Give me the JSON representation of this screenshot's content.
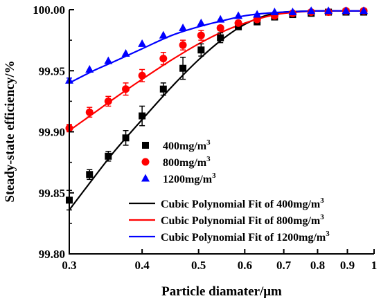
{
  "chart_data": {
    "type": "scatter",
    "xlabel": "Particle diamater/μm",
    "ylabel": "Steady-state efficiency/%",
    "xscale": "log",
    "xlim": [
      0.3,
      1.0
    ],
    "ylim": [
      99.8,
      100.0
    ],
    "xticks": [
      "0.3",
      "0.4",
      "0.5",
      "0.6",
      "0.7",
      "0.8",
      "0.9",
      "1"
    ],
    "yticks": [
      "99.80",
      "99.85",
      "99.90",
      "99.95",
      "100.00"
    ],
    "legend_position": "lower-right",
    "grid": false,
    "x": [
      0.3,
      0.325,
      0.35,
      0.375,
      0.4,
      0.435,
      0.47,
      0.505,
      0.545,
      0.585,
      0.63,
      0.675,
      0.725,
      0.78,
      0.835,
      0.895,
      0.96
    ],
    "series": [
      {
        "name": "400mg/m3",
        "name_parts": [
          "400mg/m",
          "3"
        ],
        "color": "#000000",
        "marker": "square",
        "values": [
          99.844,
          99.865,
          99.88,
          99.895,
          99.913,
          99.935,
          99.952,
          99.967,
          99.977,
          99.986,
          99.99,
          99.994,
          99.996,
          99.997,
          99.998,
          99.998,
          99.998
        ],
        "errors": [
          0.008,
          0.004,
          0.004,
          0.006,
          0.008,
          0.005,
          0.009,
          0.005,
          0.004,
          0.002,
          0.002,
          0.001,
          0.001,
          0.001,
          0.001,
          0.001,
          0.001
        ]
      },
      {
        "name": "800mg/m3",
        "name_parts": [
          "800mg/m",
          "3"
        ],
        "color": "#ff0000",
        "marker": "circle",
        "values": [
          99.903,
          99.916,
          99.925,
          99.935,
          99.946,
          99.96,
          99.971,
          99.979,
          99.985,
          99.989,
          99.992,
          99.995,
          99.997,
          99.998,
          99.998,
          99.999,
          99.999
        ],
        "errors": [
          0.003,
          0.004,
          0.004,
          0.005,
          0.005,
          0.005,
          0.004,
          0.004,
          0.002,
          0.002,
          0.001,
          0.001,
          0.001,
          0.001,
          0.001,
          0.001,
          0.001
        ]
      },
      {
        "name": "1200mg/m3",
        "name_parts": [
          "1200mg/m",
          "3"
        ],
        "color": "#0000ff",
        "marker": "triangle",
        "values": [
          99.942,
          99.951,
          99.958,
          99.964,
          99.972,
          99.979,
          99.985,
          99.989,
          99.992,
          99.995,
          99.996,
          99.998,
          99.998,
          99.999,
          99.999,
          99.999,
          99.999
        ],
        "errors": [
          0.002,
          0.001,
          0.001,
          0.001,
          0.001,
          0.001,
          0.001,
          0.001,
          0.001,
          0.001,
          0.001,
          0.001,
          0.001,
          0.001,
          0.001,
          0.001,
          0.001
        ]
      }
    ],
    "fits": [
      {
        "name": "Cubic Polynomial Fit of 400mg/m3",
        "name_parts": [
          "Cubic Polynomial Fit of 400mg/m",
          "3"
        ],
        "color": "#000000",
        "x": [
          0.3,
          0.33,
          0.36,
          0.4,
          0.45,
          0.5,
          0.55,
          0.6,
          0.65,
          0.7,
          0.8,
          0.9,
          0.96
        ],
        "y": [
          99.836,
          99.862,
          99.885,
          99.91,
          99.937,
          99.959,
          99.976,
          99.988,
          99.995,
          99.998,
          99.999,
          99.999,
          99.999
        ]
      },
      {
        "name": "Cubic Polynomial Fit of 800mg/m3",
        "name_parts": [
          "Cubic Polynomial Fit of 800mg/m",
          "3"
        ],
        "color": "#ff0000",
        "x": [
          0.3,
          0.33,
          0.36,
          0.4,
          0.45,
          0.5,
          0.55,
          0.6,
          0.65,
          0.7,
          0.8,
          0.9,
          0.96
        ],
        "y": [
          99.901,
          99.915,
          99.928,
          99.943,
          99.959,
          99.972,
          99.982,
          99.989,
          99.994,
          99.997,
          99.999,
          99.999,
          99.999
        ]
      },
      {
        "name": "Cubic Polynomial Fit of 1200mg/m3",
        "name_parts": [
          "Cubic Polynomial Fit of 1200mg/m",
          "3"
        ],
        "color": "#0000ff",
        "x": [
          0.3,
          0.33,
          0.36,
          0.4,
          0.45,
          0.5,
          0.55,
          0.6,
          0.65,
          0.7,
          0.8,
          0.9,
          0.96
        ],
        "y": [
          99.94,
          99.95,
          99.958,
          99.968,
          99.979,
          99.986,
          99.991,
          99.995,
          99.997,
          99.998,
          99.999,
          99.999,
          99.999
        ]
      }
    ]
  }
}
